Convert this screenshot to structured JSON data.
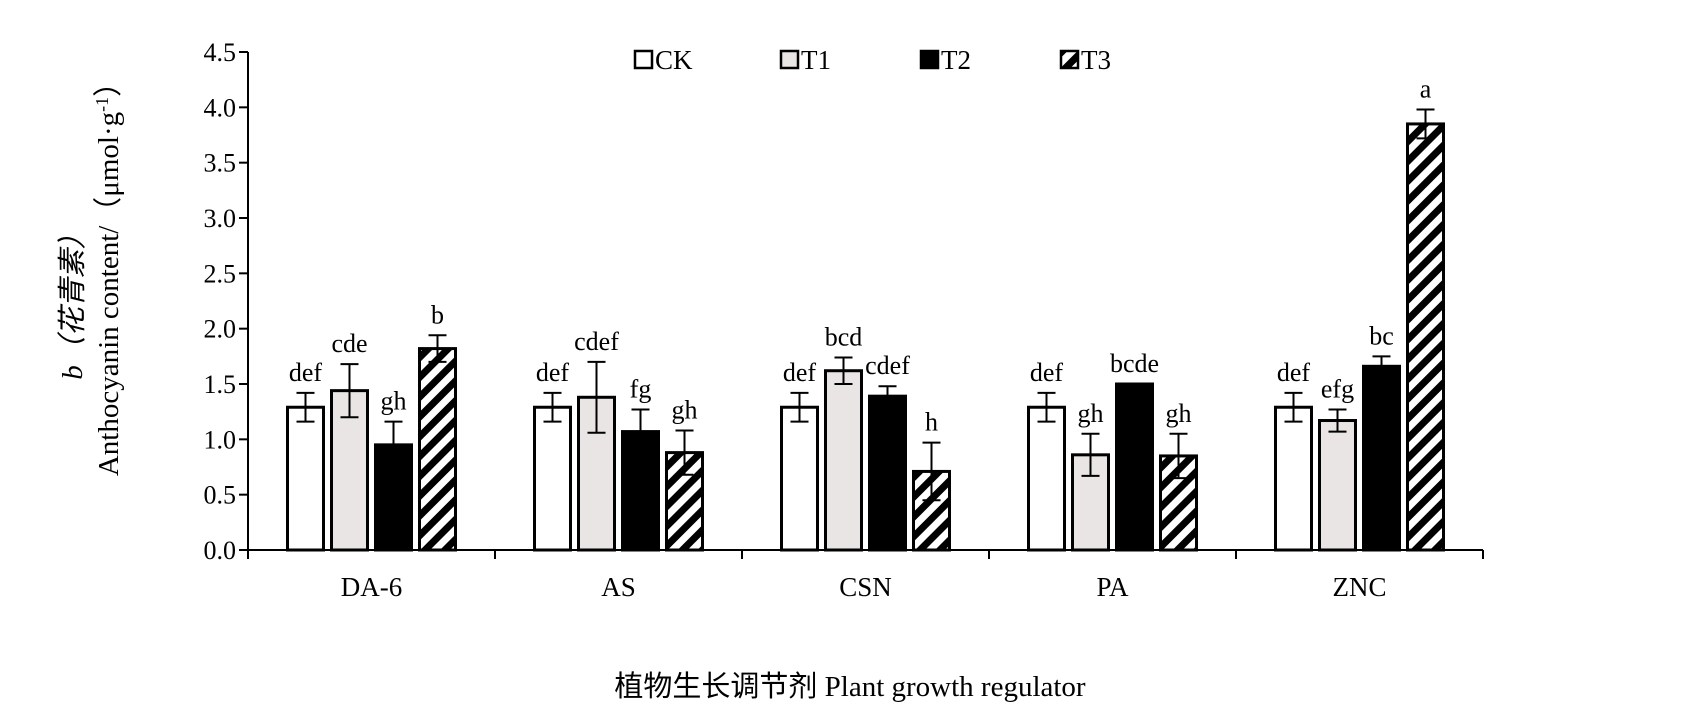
{
  "chart_data": {
    "type": "bar",
    "title": "",
    "ylabel": "b（花青素）",
    "ylabel_line2": "Anthocyanin content/（μmol·g",
    "ylabel_sup": "-1",
    "ylabel_close": "）",
    "xlabel": "植物生长调节剂 Plant growth regulator",
    "ylim": [
      0,
      4.5
    ],
    "yticks": [
      "0.0",
      "0.5",
      "1.0",
      "1.5",
      "2.0",
      "2.5",
      "3.0",
      "3.5",
      "4.0",
      "4.5"
    ],
    "ytick_values": [
      0,
      0.5,
      1.0,
      1.5,
      2.0,
      2.5,
      3.0,
      3.5,
      4.0,
      4.5
    ],
    "legend_position": "top-center",
    "grid": false,
    "categories": [
      "DA-6",
      "AS",
      "CSN",
      "PA",
      "ZNC"
    ],
    "series": [
      {
        "name": "CK",
        "pattern": "white",
        "values": [
          1.29,
          1.29,
          1.29,
          1.29,
          1.29
        ],
        "errors": [
          0.13,
          0.13,
          0.13,
          0.13,
          0.13
        ],
        "labels": [
          "def",
          "def",
          "def",
          "def",
          "def"
        ]
      },
      {
        "name": "T1",
        "pattern": "lightgray",
        "values": [
          1.44,
          1.38,
          1.62,
          0.86,
          1.17
        ],
        "errors": [
          0.24,
          0.32,
          0.12,
          0.19,
          0.1
        ],
        "labels": [
          "cde",
          "cdef",
          "bcd",
          "gh",
          "efg"
        ]
      },
      {
        "name": "T2",
        "pattern": "black",
        "values": [
          0.95,
          1.07,
          1.39,
          1.5,
          1.66
        ],
        "errors": [
          0.21,
          0.2,
          0.09,
          0.0,
          0.09
        ],
        "labels": [
          "gh",
          "fg",
          "cdef",
          "bcde",
          "bc"
        ]
      },
      {
        "name": "T3",
        "pattern": "hatched",
        "values": [
          1.82,
          0.88,
          0.71,
          0.85,
          3.85
        ],
        "errors": [
          0.12,
          0.2,
          0.26,
          0.2,
          0.13
        ],
        "labels": [
          "b",
          "gh",
          "h",
          "gh",
          "a"
        ]
      }
    ]
  },
  "colors": {
    "axis": "#000000",
    "ck_fill": "#ffffff",
    "t1_fill": "#e9e5e4",
    "t2_fill": "#000000",
    "t3_stripe": "#000000"
  }
}
